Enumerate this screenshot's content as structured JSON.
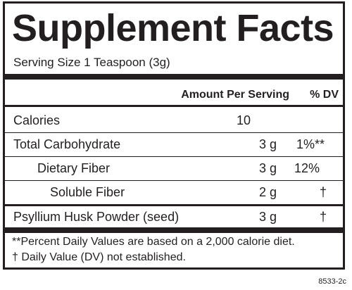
{
  "label": {
    "title": "Supplement Facts",
    "serving_size": "Serving Size 1 Teaspoon (3g)",
    "header": {
      "amount": "Amount Per Serving",
      "dv": "% DV"
    },
    "rows": [
      {
        "name": "Calories",
        "amount": "10",
        "dv": ""
      },
      {
        "name": "Total Carbohydrate",
        "amount": "3 g",
        "dv": "1%**"
      },
      {
        "name": "Dietary Fiber",
        "amount": "3 g",
        "dv": "12%"
      },
      {
        "name": "Soluble Fiber",
        "amount": "2 g",
        "dv": "†"
      },
      {
        "name": "Psyllium Husk Powder (seed)",
        "amount": "3 g",
        "dv": "†"
      }
    ],
    "footnotes": [
      "**Percent Daily Values are based on a 2,000 calorie diet.",
      "† Daily Value (DV) not established."
    ]
  },
  "product_code": "8533-2c"
}
